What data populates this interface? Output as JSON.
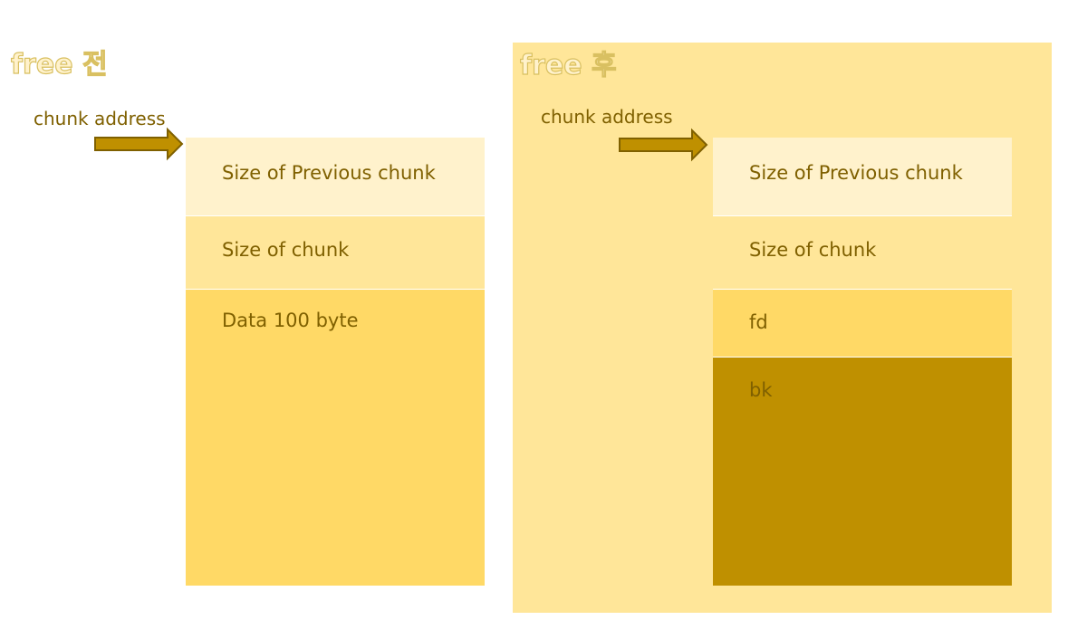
{
  "colors": {
    "text": "#7F6000",
    "light": "#FFF2CC",
    "medium": "#FFE699",
    "strong": "#FFD966",
    "dark": "#BF9000"
  },
  "before": {
    "title": "free 전",
    "pointer_label": "chunk address",
    "cells": [
      "Size of Previous chunk",
      "Size of chunk",
      "Data 100 byte"
    ]
  },
  "after": {
    "title": "free 후",
    "pointer_label": "chunk address",
    "cells": [
      "Size of Previous chunk",
      "Size of chunk",
      "fd",
      "bk"
    ]
  }
}
